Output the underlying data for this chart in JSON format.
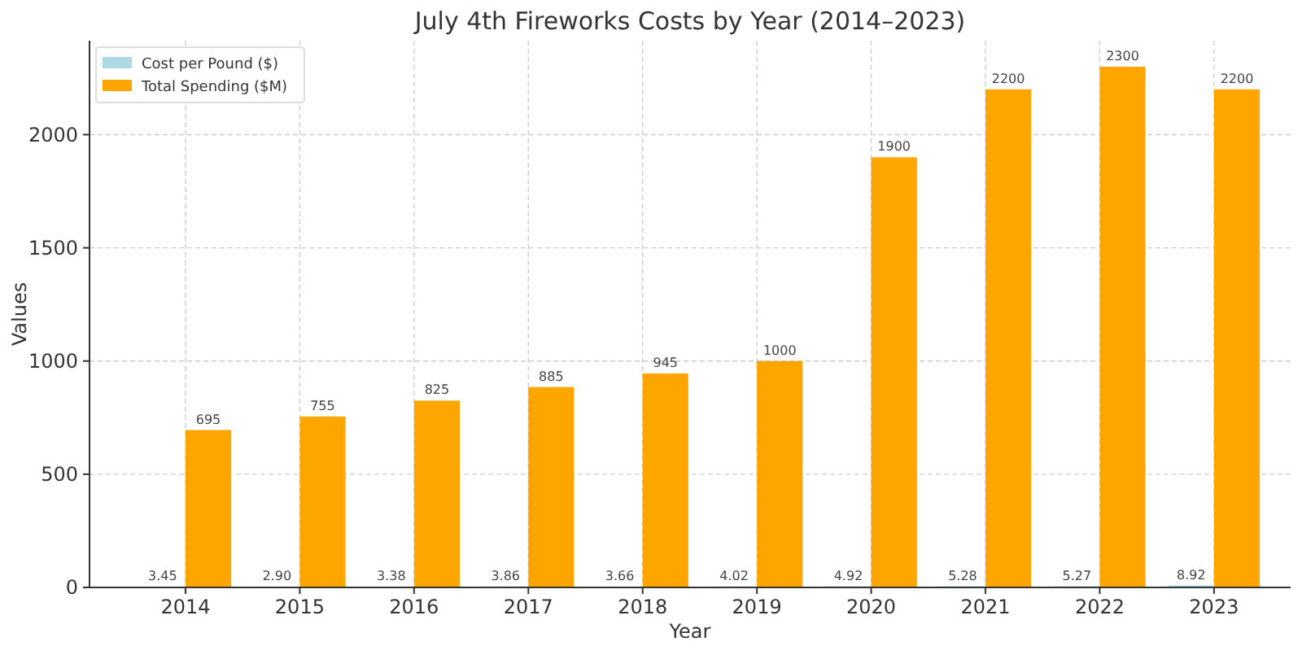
{
  "chart_data": {
    "type": "bar",
    "title": "July 4th Fireworks Costs by Year (2014–2023)",
    "xlabel": "Year",
    "ylabel": "Values",
    "categories": [
      "2014",
      "2015",
      "2016",
      "2017",
      "2018",
      "2019",
      "2020",
      "2021",
      "2022",
      "2023"
    ],
    "series": [
      {
        "name": "Cost per Pound ($)",
        "color": "#add8e6",
        "values": [
          3.45,
          2.9,
          3.38,
          3.86,
          3.66,
          4.02,
          4.92,
          5.28,
          5.27,
          8.92
        ],
        "value_labels": [
          "3.45",
          "2.90",
          "3.38",
          "3.86",
          "3.66",
          "4.02",
          "4.92",
          "5.28",
          "5.27",
          "8.92"
        ]
      },
      {
        "name": "Total Spending ($M)",
        "color": "#ffa500",
        "values": [
          695,
          755,
          825,
          885,
          945,
          1000,
          1900,
          2200,
          2300,
          2200
        ],
        "value_labels": [
          "695",
          "755",
          "825",
          "885",
          "945",
          "1000",
          "1900",
          "2200",
          "2300",
          "2200"
        ]
      }
    ],
    "ylim": [
      0,
      2415
    ],
    "yticks": [
      0,
      500,
      1000,
      1500,
      2000
    ],
    "grid": true,
    "legend": "top left"
  }
}
